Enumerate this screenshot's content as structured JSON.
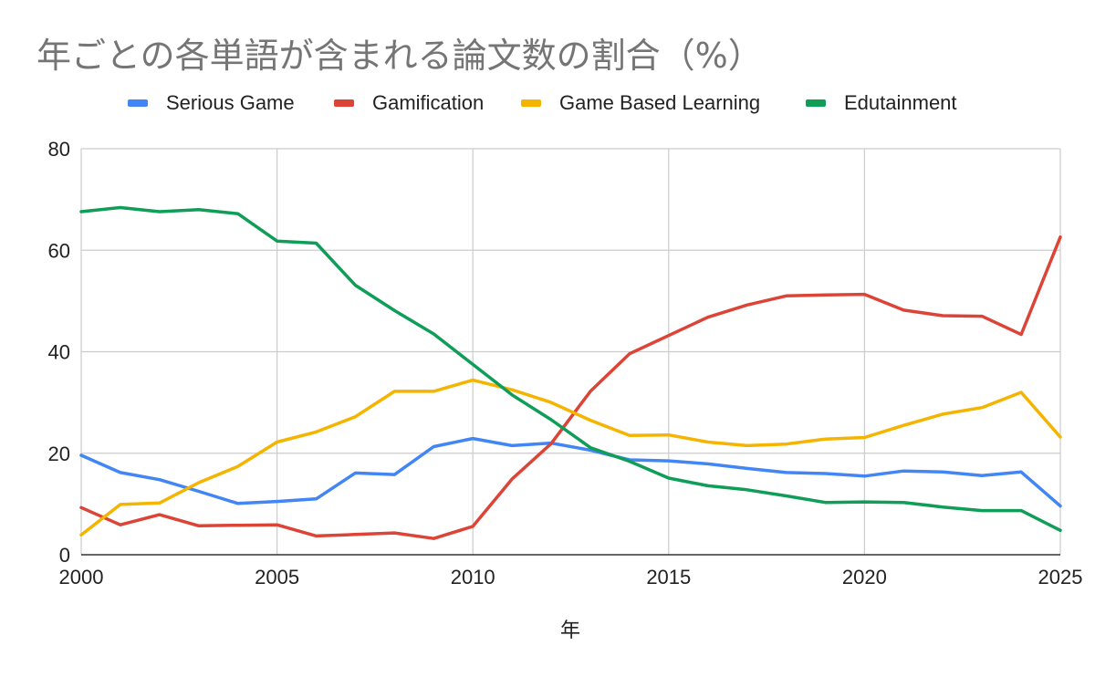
{
  "chart_data": {
    "type": "line",
    "title": "年ごとの各単語が含まれる論文数の割合（%）",
    "xlabel": "年",
    "ylabel": "",
    "xlim": [
      2000,
      2025
    ],
    "ylim": [
      0,
      80
    ],
    "x_ticks": [
      2000,
      2005,
      2010,
      2015,
      2020,
      2025
    ],
    "y_ticks": [
      0,
      20,
      40,
      60,
      80
    ],
    "grid": true,
    "legend_position": "top",
    "x": [
      2000,
      2001,
      2002,
      2003,
      2004,
      2005,
      2006,
      2007,
      2008,
      2009,
      2010,
      2011,
      2012,
      2013,
      2014,
      2015,
      2016,
      2017,
      2018,
      2019,
      2020,
      2021,
      2022,
      2023,
      2024,
      2025
    ],
    "series": [
      {
        "name": "Serious Game",
        "color": "#4285f4",
        "values": [
          19.6,
          16.2,
          14.8,
          12.5,
          10.1,
          10.5,
          11.0,
          16.1,
          15.8,
          21.3,
          22.9,
          21.5,
          22.0,
          20.6,
          18.7,
          18.5,
          17.9,
          17.0,
          16.2,
          16.0,
          15.5,
          16.5,
          16.3,
          15.6,
          16.3,
          9.6
        ]
      },
      {
        "name": "Gamification",
        "color": "#db4437",
        "values": [
          9.3,
          5.9,
          7.9,
          5.7,
          5.8,
          5.9,
          3.7,
          4.0,
          4.3,
          3.2,
          5.6,
          14.9,
          21.9,
          32.2,
          39.6,
          43.2,
          46.8,
          49.2,
          51.0,
          51.2,
          51.3,
          48.2,
          47.1,
          47.0,
          43.4,
          62.6
        ]
      },
      {
        "name": "Game Based Learning",
        "color": "#f4b400",
        "values": [
          3.9,
          9.9,
          10.2,
          14.2,
          17.4,
          22.2,
          24.2,
          27.2,
          32.2,
          32.2,
          34.4,
          32.5,
          30.0,
          26.5,
          23.5,
          23.6,
          22.2,
          21.5,
          21.8,
          22.8,
          23.1,
          25.5,
          27.7,
          29.0,
          32.0,
          23.2
        ]
      },
      {
        "name": "Edutainment",
        "color": "#0f9d58",
        "values": [
          67.6,
          68.4,
          67.6,
          68.0,
          67.2,
          61.8,
          61.4,
          53.1,
          48.1,
          43.5,
          37.5,
          31.5,
          26.6,
          21.1,
          18.4,
          15.1,
          13.6,
          12.8,
          11.6,
          10.3,
          10.4,
          10.3,
          9.4,
          8.7,
          8.7,
          4.8
        ]
      }
    ]
  }
}
